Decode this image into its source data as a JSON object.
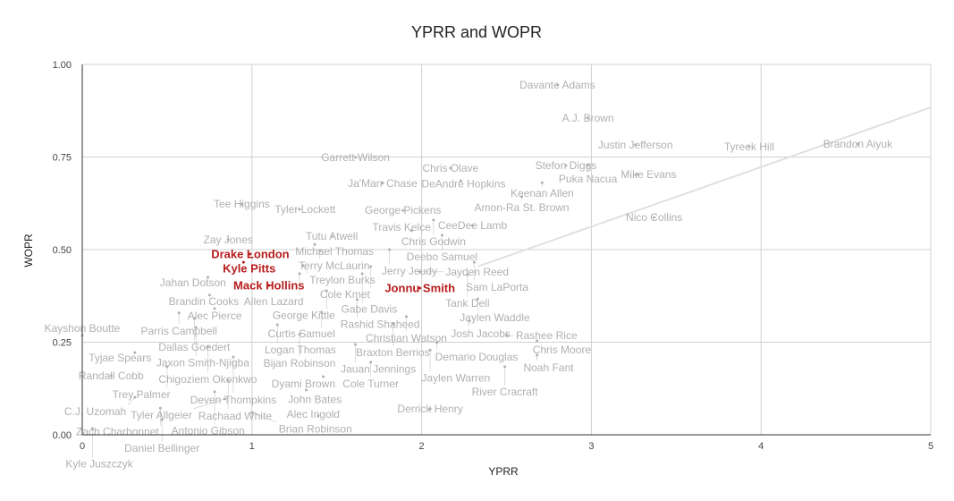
{
  "chart_data": {
    "type": "scatter",
    "title": "YPRR and WOPR",
    "xlabel": "YPRR",
    "ylabel": "WOPR",
    "xlim": [
      0,
      5
    ],
    "ylim": [
      0,
      1
    ],
    "x_ticks": [
      "0",
      "1",
      "2",
      "3",
      "4",
      "5"
    ],
    "y_ticks": [
      "0.00",
      "0.25",
      "0.50",
      "0.75",
      "1.00"
    ],
    "grid": true,
    "trendline": {
      "type": "linear",
      "slope": 0.161,
      "intercept": 0.079,
      "x_range": [
        2.33,
        5
      ],
      "color": "#e0e0e0"
    },
    "colors": {
      "label": "#b0b0b0",
      "highlight": "#b71c1c"
    },
    "points": [
      {
        "name": "Davante Adams",
        "x": 2.8,
        "y": 0.944
      },
      {
        "name": "A.J. Brown",
        "x": 2.98,
        "y": 0.855
      },
      {
        "name": "Justin Jefferson",
        "x": 3.26,
        "y": 0.783
      },
      {
        "name": "Tyreek Hill",
        "x": 3.93,
        "y": 0.778
      },
      {
        "name": "Brandon Aiyuk",
        "x": 4.57,
        "y": 0.785
      },
      {
        "name": "Stefon Diggs",
        "x": 2.85,
        "y": 0.727
      },
      {
        "name": "Puka Nacua",
        "x": 2.98,
        "y": 0.729
      },
      {
        "name": "Mike Evans",
        "x": 3.27,
        "y": 0.703
      },
      {
        "name": "Nico Collins",
        "x": 3.37,
        "y": 0.587
      },
      {
        "name": "Keenan Allen",
        "x": 2.71,
        "y": 0.681
      },
      {
        "name": "Amon-Ra St. Brown",
        "x": 2.59,
        "y": 0.643
      },
      {
        "name": "CeeDee Lamb",
        "x": 2.3,
        "y": 0.565
      },
      {
        "name": "Garrett Wilson",
        "x": 1.61,
        "y": 0.749
      },
      {
        "name": "Chris Olave",
        "x": 2.17,
        "y": 0.72
      },
      {
        "name": "DeAndre Hopkins",
        "x": 2.23,
        "y": 0.686
      },
      {
        "name": "Ja'Marr Chase",
        "x": 1.77,
        "y": 0.679
      },
      {
        "name": "Tee Higgins",
        "x": 0.94,
        "y": 0.623
      },
      {
        "name": "Tyler Lockett",
        "x": 1.28,
        "y": 0.609
      },
      {
        "name": "George Pickens",
        "x": 1.89,
        "y": 0.606
      },
      {
        "name": "Chris Godwin",
        "x": 2.07,
        "y": 0.58
      },
      {
        "name": "Zay Jones",
        "x": 0.86,
        "y": 0.527
      },
      {
        "name": "Tutu Atwell",
        "x": 1.47,
        "y": 0.536
      },
      {
        "name": "Travis Kelce",
        "x": 1.94,
        "y": 0.551
      },
      {
        "name": "Deebo Samuel",
        "x": 2.12,
        "y": 0.539
      },
      {
        "name": "Michael Thomas",
        "x": 1.37,
        "y": 0.514
      },
      {
        "name": "Terry McLaurin",
        "x": 1.4,
        "y": 0.498
      },
      {
        "name": "Jerry Jeudy",
        "x": 1.81,
        "y": 0.5
      },
      {
        "name": "Drake London",
        "x": 0.99,
        "y": 0.488,
        "highlight": true
      },
      {
        "name": "Kyle Pitts",
        "x": 0.95,
        "y": 0.466,
        "highlight": true
      },
      {
        "name": "Treylon Burks",
        "x": 1.3,
        "y": 0.457
      },
      {
        "name": "Cole Kmet",
        "x": 1.7,
        "y": 0.454
      },
      {
        "name": "Gabe Davis",
        "x": 1.65,
        "y": 0.435
      },
      {
        "name": "Allen Lazard",
        "x": 1.28,
        "y": 0.435
      },
      {
        "name": "Jayden Reed",
        "x": 1.99,
        "y": 0.44
      },
      {
        "name": "Sam LaPorta",
        "x": 2.31,
        "y": 0.466
      },
      {
        "name": "Tank Dell",
        "x": 2.27,
        "y": 0.432
      },
      {
        "name": "Jahan Dotson",
        "x": 0.74,
        "y": 0.425
      },
      {
        "name": "Mack Hollins",
        "x": 1.1,
        "y": 0.403,
        "highlight": true
      },
      {
        "name": "Jonnu Smith",
        "x": 1.99,
        "y": 0.396,
        "highlight": true
      },
      {
        "name": "Jaylen Waddle",
        "x": 2.33,
        "y": 0.367
      },
      {
        "name": "George Kittle",
        "x": 1.44,
        "y": 0.389
      },
      {
        "name": "Brandin Cooks",
        "x": 0.75,
        "y": 0.377
      },
      {
        "name": "Rashid Shaheed",
        "x": 1.62,
        "y": 0.365
      },
      {
        "name": "Alec Pierce",
        "x": 0.78,
        "y": 0.341
      },
      {
        "name": "Parris Campbell",
        "x": 0.57,
        "y": 0.329
      },
      {
        "name": "Curtis Samuel",
        "x": 1.41,
        "y": 0.331
      },
      {
        "name": "Christian Watson",
        "x": 1.91,
        "y": 0.319
      },
      {
        "name": "Braxton Berrios",
        "x": 1.83,
        "y": 0.3
      },
      {
        "name": "Josh Jacobs",
        "x": 2.28,
        "y": 0.307
      },
      {
        "name": "Dallas Goedert",
        "x": 0.66,
        "y": 0.314
      },
      {
        "name": "Jaxon Smith-Njigba",
        "x": 0.67,
        "y": 0.29
      },
      {
        "name": "Logan Thomas",
        "x": 1.15,
        "y": 0.297
      },
      {
        "name": "Bijan Robinson",
        "x": 1.28,
        "y": 0.271
      },
      {
        "name": "Kayshon Boutte",
        "x": 0.0,
        "y": 0.268
      },
      {
        "name": "Jauan Jennings",
        "x": 1.61,
        "y": 0.244
      },
      {
        "name": "Demario Douglas",
        "x": 2.09,
        "y": 0.249
      },
      {
        "name": "Jaylen Warren",
        "x": 2.05,
        "y": 0.229
      },
      {
        "name": "Rashee Rice",
        "x": 2.5,
        "y": 0.268
      },
      {
        "name": "Chris Moore",
        "x": 2.68,
        "y": 0.254
      },
      {
        "name": "Noah Fant",
        "x": 2.68,
        "y": 0.215
      },
      {
        "name": "River Cracraft",
        "x": 2.49,
        "y": 0.184
      },
      {
        "name": "Cole Turner",
        "x": 1.7,
        "y": 0.196
      },
      {
        "name": "Dyami Brown",
        "x": 1.42,
        "y": 0.157
      },
      {
        "name": "Chigoziem Okonkwo",
        "x": 0.74,
        "y": 0.237
      },
      {
        "name": "Tyjae Spears",
        "x": 0.31,
        "y": 0.222
      },
      {
        "name": "Deven Thompkins",
        "x": 0.89,
        "y": 0.21
      },
      {
        "name": "Trey Palmer",
        "x": 0.5,
        "y": 0.184
      },
      {
        "name": "Randall Cobb",
        "x": 0.17,
        "y": 0.159
      },
      {
        "name": "Rachaad White",
        "x": 0.86,
        "y": 0.147
      },
      {
        "name": "Antonio Gibson",
        "x": 0.78,
        "y": 0.116
      },
      {
        "name": "John Bates",
        "x": 1.32,
        "y": 0.121
      },
      {
        "name": "Tyler Allgeier",
        "x": 0.84,
        "y": 0.097
      },
      {
        "name": "C.J. Uzomah",
        "x": 0.31,
        "y": 0.101
      },
      {
        "name": "Zach Charbonnet",
        "x": 0.46,
        "y": 0.072
      },
      {
        "name": "Brian Robinson",
        "x": 1.0,
        "y": 0.06
      },
      {
        "name": "Alec Ingold",
        "x": 1.39,
        "y": 0.051
      },
      {
        "name": "Derrick Henry",
        "x": 2.05,
        "y": 0.07
      },
      {
        "name": "Daniel Bellinger",
        "x": 0.47,
        "y": 0.041
      },
      {
        "name": "Kyle Juszczyk",
        "x": 0.06,
        "y": 0.017
      }
    ]
  }
}
